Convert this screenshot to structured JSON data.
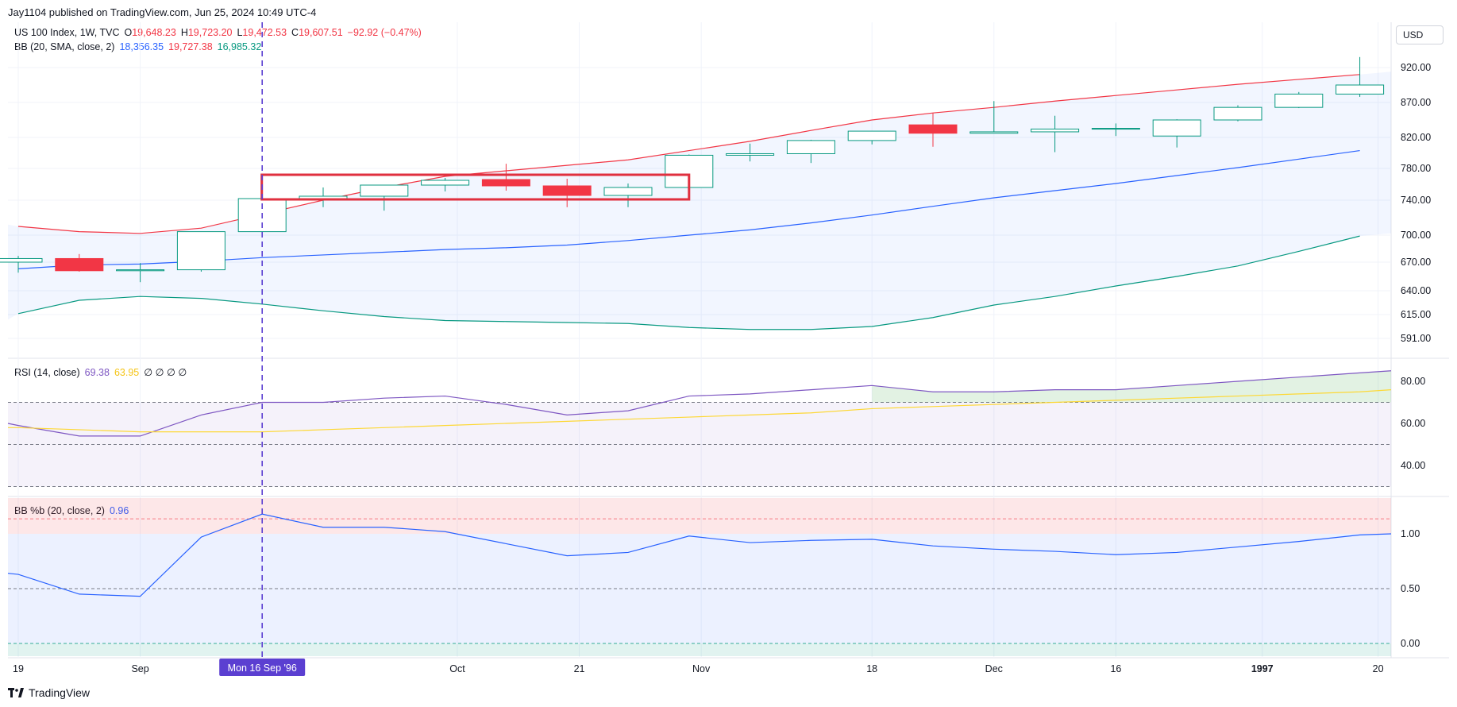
{
  "header": {
    "published": "Jay1104 published on TradingView.com, Jun 25, 2024 10:49 UTC-4"
  },
  "legend": {
    "symbol": "US 100 Index, 1W, TVC",
    "o_label": "O",
    "o": "19,648.23",
    "h_label": "H",
    "h": "19,723.20",
    "l_label": "L",
    "l": "19,472.53",
    "c_label": "C",
    "c": "19,607.51",
    "change": "−92.92 (−0.47%)",
    "bb": "BB (20, SMA, close, 2)",
    "bb_basis": "18,356.35",
    "bb_upper": "19,727.38",
    "bb_lower": "16,985.32",
    "rsi": "RSI (14, close)",
    "rsi_value": "69.38",
    "rsi_ma": "63.95",
    "rsi_extra": "∅ ∅ ∅ ∅",
    "bbpb": "BB %b (20, close, 2)",
    "bbpb_value": "0.96"
  },
  "currency": "USD",
  "brand": {
    "name": "TradingView"
  },
  "crosshair_label": "Mon 16 Sep '96",
  "colors": {
    "up": "#089981",
    "down": "#f23645",
    "upper": "#f23645",
    "basis": "#2962ff",
    "lower": "#089981",
    "rsi": "#7e57c2",
    "rsi_ma": "#fdd835",
    "bbpb": "#2962ff",
    "highlight": "#e0303f",
    "crosshair": "#5b3fd1"
  },
  "chart_data": {
    "type": "candlestick",
    "price_axis_ticks": [
      920,
      870,
      820,
      780,
      740,
      700,
      670,
      640,
      615,
      591
    ],
    "price_axis_labels": [
      "920.00",
      "870.00",
      "820.00",
      "780.00",
      "740.00",
      "700.00",
      "670.00",
      "640.00",
      "615.00",
      "591.00"
    ],
    "x_tick_labels": [
      {
        "label": "19",
        "week": 0.0
      },
      {
        "label": "Sep",
        "week": 2.0
      },
      {
        "label": "Oct",
        "week": 7.2
      },
      {
        "label": "21",
        "week": 9.2
      },
      {
        "label": "Nov",
        "week": 11.2
      },
      {
        "label": "18",
        "week": 14.0
      },
      {
        "label": "Dec",
        "week": 16.0
      },
      {
        "label": "16",
        "week": 18.0
      },
      {
        "label": "1997",
        "week": 20.4,
        "bold": true
      },
      {
        "label": "20",
        "week": 22.3
      }
    ],
    "candles": [
      {
        "week": 0,
        "o": 670,
        "h": 677,
        "l": 659,
        "c": 674
      },
      {
        "week": 1,
        "o": 674,
        "h": 679,
        "l": 660,
        "c": 661
      },
      {
        "week": 2,
        "o": 661,
        "h": 669,
        "l": 649,
        "c": 662
      },
      {
        "week": 3,
        "o": 662,
        "h": 704,
        "l": 660,
        "c": 704
      },
      {
        "week": 4,
        "o": 704,
        "h": 742,
        "l": 704,
        "c": 742
      },
      {
        "week": 5,
        "o": 742,
        "h": 756,
        "l": 732,
        "c": 745
      },
      {
        "week": 6,
        "o": 745,
        "h": 759,
        "l": 728,
        "c": 759
      },
      {
        "week": 7,
        "o": 759,
        "h": 768,
        "l": 751,
        "c": 765
      },
      {
        "week": 8,
        "o": 766,
        "h": 786,
        "l": 752,
        "c": 758
      },
      {
        "week": 9,
        "o": 758,
        "h": 767,
        "l": 732,
        "c": 746
      },
      {
        "week": 10,
        "o": 746,
        "h": 761,
        "l": 732,
        "c": 756
      },
      {
        "week": 11,
        "o": 756,
        "h": 798,
        "l": 756,
        "c": 797
      },
      {
        "week": 12,
        "o": 797,
        "h": 812,
        "l": 789,
        "c": 799
      },
      {
        "week": 13,
        "o": 799,
        "h": 817,
        "l": 787,
        "c": 816
      },
      {
        "week": 14,
        "o": 816,
        "h": 829,
        "l": 811,
        "c": 829
      },
      {
        "week": 15,
        "o": 838,
        "h": 855,
        "l": 808,
        "c": 826
      },
      {
        "week": 16,
        "o": 826,
        "h": 872,
        "l": 826,
        "c": 828
      },
      {
        "week": 17,
        "o": 828,
        "h": 851,
        "l": 801,
        "c": 832
      },
      {
        "week": 18,
        "o": 832,
        "h": 840,
        "l": 822,
        "c": 833
      },
      {
        "week": 19,
        "o": 822,
        "h": 846,
        "l": 807,
        "c": 845
      },
      {
        "week": 20,
        "o": 845,
        "h": 866,
        "l": 843,
        "c": 863
      },
      {
        "week": 21,
        "o": 863,
        "h": 885,
        "l": 862,
        "c": 882
      },
      {
        "week": 22,
        "o": 882,
        "h": 935,
        "l": 878,
        "c": 895
      }
    ],
    "bb_upper": [
      710,
      704,
      702,
      708,
      724,
      740,
      756,
      770,
      777,
      784,
      791,
      803,
      815,
      830,
      845,
      855,
      863,
      872,
      880,
      888,
      896,
      903,
      910
    ],
    "bb_basis": [
      663,
      667,
      668,
      671,
      675,
      678,
      681,
      684,
      686,
      689,
      694,
      700,
      706,
      714,
      723,
      733,
      743,
      752,
      761,
      771,
      781,
      792,
      803
    ],
    "bb_lower": [
      616,
      630,
      634,
      632,
      626,
      619,
      613,
      609,
      608,
      607,
      606,
      602,
      600,
      600,
      603,
      612,
      625,
      634,
      645,
      655,
      666,
      682,
      699
    ],
    "rsi": {
      "ticks": [
        80,
        60,
        40
      ],
      "tick_labels": [
        "80.00",
        "60.00",
        "40.00"
      ],
      "bands": [
        70,
        50,
        30
      ],
      "values": [
        59,
        54,
        54,
        64,
        70,
        70,
        72,
        73,
        69,
        64,
        66,
        73,
        74,
        76,
        78,
        75,
        75,
        76,
        76,
        78,
        80,
        82,
        84
      ],
      "ma": [
        58,
        57,
        56,
        56,
        56,
        57,
        58,
        59,
        60,
        61,
        62,
        63,
        64,
        65,
        67,
        68,
        69,
        70,
        71,
        72,
        73,
        74,
        75
      ]
    },
    "bbpb": {
      "ticks": [
        1.0,
        0.5,
        0.0
      ],
      "tick_labels": [
        "1.00",
        "0.50",
        "0.00"
      ],
      "bands": [
        1.0,
        0.5,
        0.0
      ],
      "values": [
        0.63,
        0.45,
        0.43,
        0.97,
        1.18,
        1.06,
        1.06,
        1.02,
        0.91,
        0.8,
        0.83,
        0.98,
        0.92,
        0.94,
        0.95,
        0.89,
        0.86,
        0.84,
        0.81,
        0.83,
        0.88,
        0.93,
        0.99
      ]
    }
  }
}
